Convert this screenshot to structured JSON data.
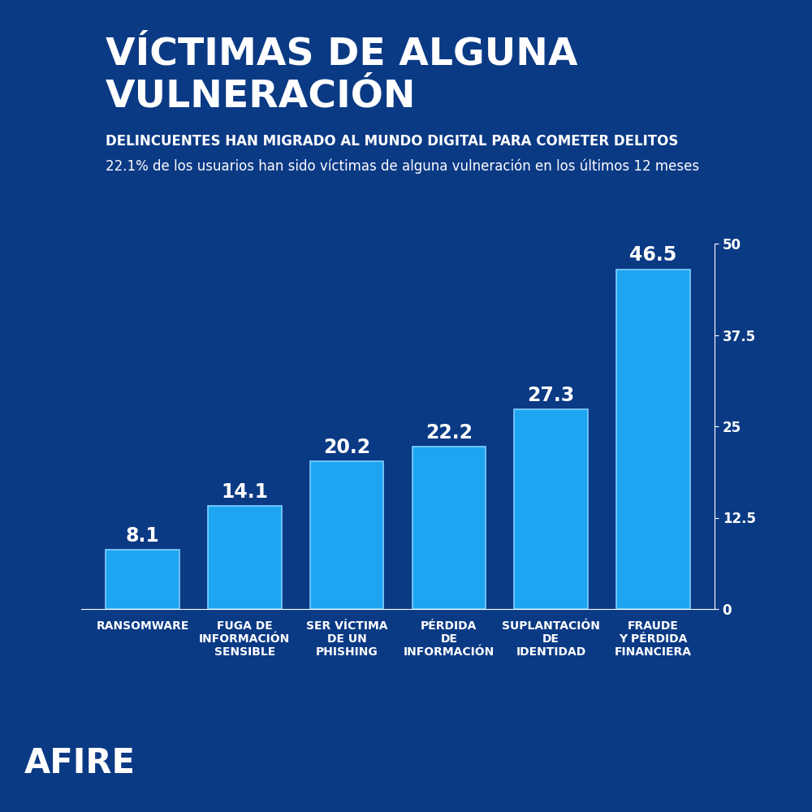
{
  "chart_data": {
    "type": "bar",
    "title": "VÍCTIMAS DE ALGUNA VULNERACIÓN",
    "subtitle": "DELINCUENTES HAN MIGRADO AL MUNDO DIGITAL PARA COMETER DELITOS",
    "annotations": [
      "22.1% de los usuarios han sido víctimas de alguna vulneración en los últimos 12 meses",
      "AFIRE"
    ],
    "categories": [
      "RANSOMWARE",
      "FUGA DE\nINFORMACIÓN\nSENSIBLE",
      "SER VÍCTIMA\nDE UN\nPHISHING",
      "PÉRDIDA\nDE\nINFORMACIÓN",
      "SUPLANTACIÓN\nDE\nIDENTIDAD",
      "FRAUDE\nY PÉRDIDA\nFINANCIERA"
    ],
    "values": [
      8.1,
      14.1,
      20.2,
      22.2,
      27.3,
      46.5
    ],
    "color": "#1ea5f2",
    "ylim": [
      0,
      50
    ],
    "yticks": [
      0,
      12.5,
      25,
      37.5,
      50
    ],
    "grid": false,
    "data_labels": true
  }
}
